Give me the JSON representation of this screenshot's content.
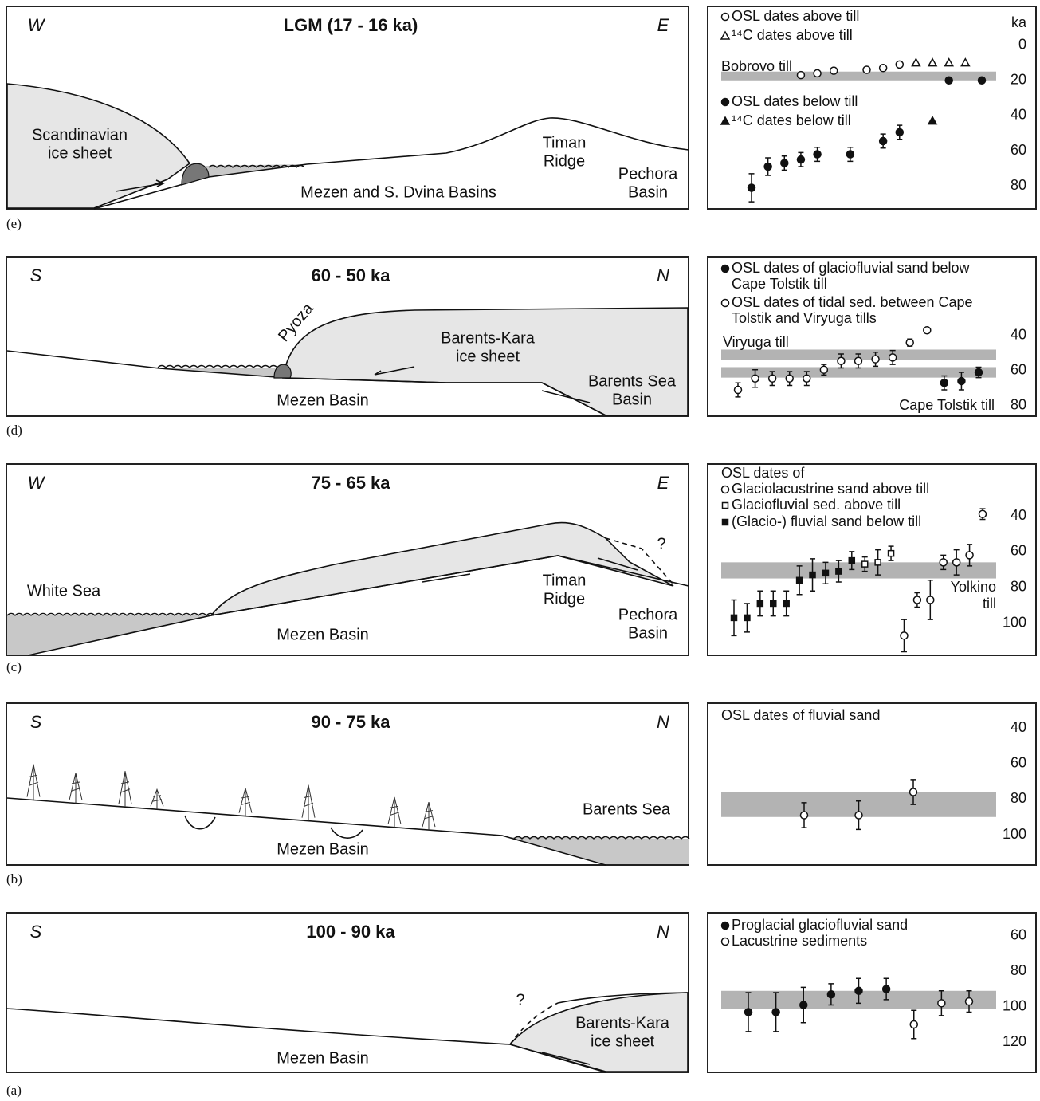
{
  "panels": [
    {
      "letter": "(e)",
      "left": "W",
      "title": "LGM (17 - 16 ka)",
      "right": "E",
      "labels": [
        [
          "Scandinavian",
          "ice sheet"
        ],
        [
          "Timan",
          "Ridge"
        ],
        [
          "Pechora",
          "Basin"
        ],
        [
          "Mezen and S. Dvina Basins"
        ]
      ]
    },
    {
      "letter": "(d)",
      "left": "S",
      "title": "60 - 50 ka",
      "right": "N",
      "labels": [
        [
          "Pyoza"
        ],
        [
          "Barents-Kara",
          "ice sheet"
        ],
        [
          "Barents Sea",
          "Basin"
        ],
        [
          "Mezen Basin"
        ]
      ]
    },
    {
      "letter": "(c)",
      "left": "W",
      "title": "75 - 65 ka",
      "right": "E",
      "labels": [
        [
          "White Sea"
        ],
        [
          "Timan",
          "Ridge"
        ],
        [
          "Pechora",
          "Basin"
        ],
        [
          "Mezen Basin"
        ],
        [
          "?"
        ]
      ]
    },
    {
      "letter": "(b)",
      "left": "S",
      "title": "90 - 75 ka",
      "right": "N",
      "labels": [
        [
          "Barents Sea"
        ],
        [
          "Mezen Basin"
        ]
      ]
    },
    {
      "letter": "(a)",
      "left": "S",
      "title": "100 - 90 ka",
      "right": "N",
      "labels": [
        [
          "?"
        ],
        [
          "Barents-Kara",
          "ice sheet"
        ],
        [
          "Mezen Basin"
        ]
      ]
    }
  ],
  "chart_data": [
    {
      "type": "scatter",
      "y_reversed": true,
      "y_label": "ka",
      "ylim": [
        -22,
        93
      ],
      "yticks": [
        0,
        20,
        40,
        60,
        80
      ],
      "categories": [
        null,
        null,
        null,
        null,
        null,
        null,
        null,
        null,
        null,
        null,
        null,
        null,
        null,
        null,
        null
      ],
      "bands": [
        {
          "label": [
            "Bobrovo till"
          ],
          "from": 15,
          "to": 20,
          "color": "#b3b3b3"
        }
      ],
      "series": [
        {
          "name": [
            "OSL dates above till"
          ],
          "marker": "circle-open",
          "color": "#111",
          "values": [
            null,
            null,
            null,
            17,
            16,
            14.5,
            null,
            14,
            13,
            11,
            null,
            null,
            null,
            null,
            null
          ]
        },
        {
          "name": [
            "¹⁴C dates above till"
          ],
          "marker": "triangle-open",
          "color": "#111",
          "values": [
            null,
            null,
            null,
            null,
            null,
            null,
            null,
            null,
            null,
            null,
            10,
            10,
            10,
            10,
            null
          ]
        },
        {
          "name": [
            "OSL dates below till"
          ],
          "marker": "circle",
          "color": "#111",
          "values": [
            81,
            69,
            67,
            65,
            62,
            null,
            62,
            null,
            54.5,
            49.5,
            null,
            null,
            20,
            null,
            20
          ],
          "errors": [
            8,
            5,
            4,
            4,
            4,
            null,
            4,
            null,
            4,
            4,
            null,
            null,
            null,
            null,
            null
          ]
        },
        {
          "name": [
            "¹⁴C dates below till"
          ],
          "marker": "triangle",
          "color": "#111",
          "values": [
            null,
            null,
            null,
            null,
            null,
            null,
            null,
            null,
            null,
            null,
            null,
            43,
            null,
            null,
            null
          ]
        }
      ]
    },
    {
      "type": "scatter",
      "y_reversed": true,
      "ylim": [
        -5,
        86
      ],
      "yticks": [
        40,
        60,
        80
      ],
      "categories": [
        null,
        null,
        null,
        null,
        null,
        null,
        null,
        null,
        null,
        null,
        null,
        null,
        null,
        null,
        null
      ],
      "bands": [
        {
          "label": [
            "Viryuga till"
          ],
          "from": 48,
          "to": 54,
          "color": "#b3b3b3"
        },
        {
          "label": [
            "Cape Tolstik till"
          ],
          "from": 58,
          "to": 64,
          "color": "#b3b3b3"
        }
      ],
      "series": [
        {
          "name": [
            "OSL dates of glaciofluvial sand below",
            "Cape Tolstik till"
          ],
          "marker": "circle",
          "color": "#111",
          "values": [
            null,
            null,
            null,
            null,
            null,
            null,
            null,
            null,
            null,
            null,
            null,
            null,
            67,
            66,
            61
          ],
          "errors": [
            null,
            null,
            null,
            null,
            null,
            null,
            null,
            null,
            null,
            null,
            null,
            null,
            4,
            5,
            3
          ]
        },
        {
          "name": [
            "OSL dates of tidal sed. between Cape",
            "Tolstik and Viryuga tills"
          ],
          "marker": "circle-open",
          "color": "#111",
          "values": [
            71,
            64.5,
            64.5,
            64.5,
            64.5,
            59.5,
            54.5,
            54.5,
            53.5,
            52.5,
            44,
            37,
            null,
            null,
            null
          ],
          "errors": [
            4,
            5,
            4,
            4,
            4,
            3,
            4,
            4,
            4,
            4,
            2,
            null,
            null,
            null,
            null
          ]
        }
      ]
    },
    {
      "type": "scatter",
      "y_reversed": true,
      "ylim": [
        11,
        118
      ],
      "yticks": [
        40,
        60,
        80,
        100
      ],
      "legend_title": "OSL dates of",
      "categories": [
        null,
        null,
        null,
        null,
        null,
        null,
        null,
        null,
        null,
        null,
        null,
        null,
        null,
        null,
        null,
        null,
        null,
        null,
        null,
        null
      ],
      "bands": [
        {
          "label": [
            "Yolkino",
            "till"
          ],
          "from": 66,
          "to": 75,
          "color": "#b3b3b3"
        }
      ],
      "series": [
        {
          "name": [
            "Glaciolacustrine sand above till"
          ],
          "marker": "circle-open",
          "color": "#111",
          "values": [
            null,
            null,
            null,
            null,
            null,
            null,
            null,
            null,
            null,
            null,
            null,
            null,
            null,
            107,
            87,
            87,
            66,
            66,
            62,
            39
          ],
          "errors": [
            null,
            null,
            null,
            null,
            null,
            null,
            null,
            null,
            null,
            null,
            null,
            null,
            null,
            9,
            4,
            11,
            4,
            7,
            6,
            3
          ]
        },
        {
          "name": [
            "Glaciofluvial sed. above till"
          ],
          "marker": "square-open",
          "color": "#111",
          "values": [
            null,
            null,
            null,
            null,
            null,
            null,
            null,
            null,
            null,
            null,
            67,
            66,
            61,
            null,
            null,
            null,
            null,
            null,
            null,
            null
          ],
          "errors": [
            null,
            null,
            null,
            null,
            null,
            null,
            null,
            null,
            null,
            null,
            4,
            7,
            4,
            null,
            null,
            null,
            null,
            null,
            null,
            null
          ]
        },
        {
          "name": [
            "(Glacio-) fluvial sand below till"
          ],
          "marker": "square",
          "color": "#111",
          "values": [
            97,
            97,
            89,
            89,
            89,
            76,
            73,
            72,
            71,
            65,
            null,
            null,
            null,
            null,
            null,
            null,
            null,
            null,
            null,
            null
          ],
          "errors": [
            10,
            8,
            7,
            7,
            7,
            8,
            9,
            6,
            6,
            5,
            null,
            null,
            null,
            null,
            null,
            null,
            null,
            null,
            null,
            null
          ]
        }
      ]
    },
    {
      "type": "scatter",
      "y_reversed": true,
      "ylim": [
        26,
        117
      ],
      "yticks": [
        40,
        60,
        80,
        100
      ],
      "legend_title": "OSL dates of fluvial sand",
      "categories": [
        null,
        null,
        null
      ],
      "bands": [
        {
          "from": 76,
          "to": 90,
          "color": "#b3b3b3"
        }
      ],
      "series": [
        {
          "marker": "circle-open",
          "color": "#111",
          "values": [
            89,
            89,
            76
          ],
          "errors": [
            7,
            8,
            7
          ]
        }
      ]
    },
    {
      "type": "scatter",
      "y_reversed": true,
      "ylim": [
        47,
        137
      ],
      "yticks": [
        60,
        80,
        100,
        120
      ],
      "categories": [
        null,
        null,
        null,
        null,
        null,
        null,
        null,
        null,
        null
      ],
      "bands": [
        {
          "from": 91,
          "to": 101,
          "color": "#b3b3b3"
        }
      ],
      "series": [
        {
          "name": [
            "Proglacial glaciofluvial sand"
          ],
          "marker": "circle",
          "color": "#111",
          "values": [
            103,
            103,
            99,
            93,
            91,
            90,
            null,
            null,
            null
          ],
          "errors": [
            11,
            11,
            10,
            6,
            7,
            6,
            null,
            null,
            null
          ]
        },
        {
          "name": [
            "Lacustrine sediments"
          ],
          "marker": "circle-open",
          "color": "#111",
          "values": [
            null,
            null,
            null,
            null,
            null,
            null,
            110,
            98,
            97
          ],
          "errors": [
            null,
            null,
            null,
            null,
            null,
            null,
            8,
            7,
            6
          ]
        }
      ]
    }
  ]
}
